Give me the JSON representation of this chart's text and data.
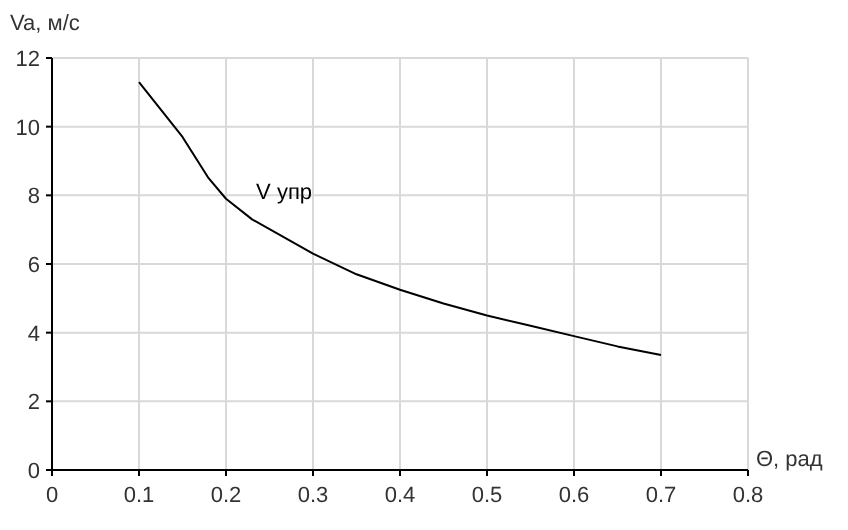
{
  "chart_data": {
    "type": "line",
    "xlabel": "Θ, рад",
    "ylabel": "Va, м/с",
    "x": [
      0.1,
      0.15,
      0.18,
      0.2,
      0.23,
      0.3,
      0.35,
      0.4,
      0.45,
      0.5,
      0.55,
      0.6,
      0.65,
      0.7
    ],
    "series": [
      {
        "name": "V упр",
        "color": "#000000",
        "values": [
          11.3,
          9.7,
          8.5,
          7.9,
          7.3,
          6.3,
          5.7,
          5.25,
          4.85,
          4.5,
          4.2,
          3.9,
          3.6,
          3.35
        ]
      }
    ],
    "xlim": [
      0,
      0.8
    ],
    "xticks": [
      0,
      0.1,
      0.2,
      0.3,
      0.4,
      0.5,
      0.6,
      0.7,
      0.8
    ],
    "ylim": [
      0,
      12
    ],
    "yticks": [
      0,
      2,
      4,
      6,
      8,
      10,
      12
    ],
    "grid": true,
    "marker": "none",
    "line_style": "solid"
  }
}
